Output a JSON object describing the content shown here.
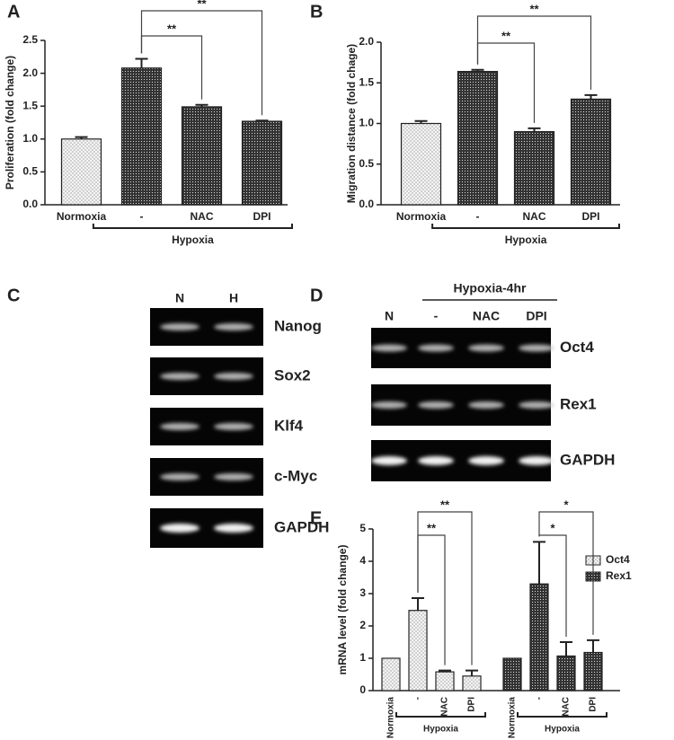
{
  "chart_data": [
    {
      "type": "bar",
      "panel": "A",
      "ylabel": "Proliferation (fold change)",
      "categories": [
        "Normoxia",
        "-",
        "NAC",
        "DPI"
      ],
      "series": [
        {
          "values": [
            1.0,
            2.08,
            1.49,
            1.27
          ],
          "errors": [
            0.03,
            0.14,
            0.03,
            0.01
          ],
          "fills": [
            "dots",
            "hatch",
            "hatch",
            "hatch"
          ]
        }
      ],
      "ylim": [
        0,
        2.5
      ],
      "yticks": [
        {
          "value": 0,
          "label": "0.0"
        },
        0.5,
        {
          "value": 1,
          "label": "1.0"
        },
        1.5,
        {
          "value": 2,
          "label": "2.0"
        },
        2.5
      ],
      "significance": [
        "**",
        "**"
      ],
      "group_labels": [
        "Hypoxia"
      ]
    },
    {
      "type": "bar",
      "panel": "B",
      "ylabel": "Migration distance (fold chage)",
      "categories": [
        "Normoxia",
        "-",
        "NAC",
        "DPI"
      ],
      "series": [
        {
          "values": [
            1.0,
            1.64,
            0.9,
            1.3
          ],
          "errors": [
            0.03,
            0.02,
            0.04,
            0.05
          ],
          "fills": [
            "dots",
            "hatch",
            "hatch",
            "hatch"
          ]
        }
      ],
      "ylim": [
        0,
        2
      ],
      "yticks": [
        {
          "value": 0,
          "label": "0.0"
        },
        0.5,
        {
          "value": 1,
          "label": "1.0"
        },
        1.5,
        {
          "value": 2,
          "label": "2.0"
        }
      ],
      "significance": [
        "**",
        "**"
      ],
      "group_labels": [
        "Hypoxia"
      ]
    },
    {
      "type": "bar",
      "panel": "E",
      "ylabel": "mRNA level (fold change)",
      "categories": [
        "Normoxia",
        "-",
        "NAC",
        "DPI",
        "Normoxia",
        "-",
        "NAC",
        "DPI"
      ],
      "series": [
        {
          "name": "Oct4",
          "pattern": "dots",
          "values": [
            1.0,
            2.48,
            0.58,
            0.45,
            null,
            null,
            null,
            null
          ],
          "errors": [
            null,
            0.38,
            0.04,
            0.17,
            null,
            null,
            null,
            null
          ]
        },
        {
          "name": "Rex1",
          "pattern": "hatch",
          "values": [
            null,
            null,
            null,
            null,
            1.0,
            3.3,
            1.07,
            1.18
          ],
          "errors": [
            null,
            null,
            null,
            null,
            null,
            1.3,
            0.43,
            0.38
          ]
        }
      ],
      "ylim": [
        0,
        5
      ],
      "yticks": [
        0,
        1,
        2,
        3,
        4,
        5
      ],
      "significance": [
        "**",
        "**",
        "*",
        "*"
      ],
      "group_labels": [
        "Hypoxia",
        "Hypoxia"
      ]
    }
  ],
  "gels": [
    {
      "panel": "C",
      "lanes": [
        "N",
        "H"
      ],
      "rows": [
        "Nanog",
        "Sox2",
        "Klf4",
        "c-Myc",
        "GAPDH"
      ]
    },
    {
      "panel": "D",
      "header": "Hypoxia-4hr",
      "lanes": [
        "N",
        "-",
        "NAC",
        "DPI"
      ],
      "rows": [
        "Oct4",
        "Rex1",
        "GAPDH"
      ]
    }
  ]
}
